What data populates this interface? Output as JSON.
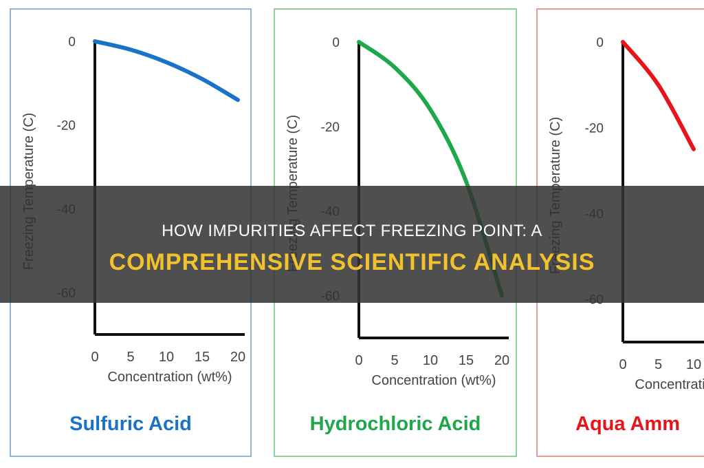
{
  "banner": {
    "line1": "How Impurities Affect Freezing Point: A",
    "line2": "Comprehensive Scientific Analysis"
  },
  "chart_data": [
    {
      "type": "line",
      "title": "Sulfuric Acid",
      "color": "#1a73c7",
      "border_color": "#8fb3d9",
      "xlabel": "Concentration (wt%)",
      "ylabel": "Freezing Temperature (C)",
      "xticks": [
        "0",
        "5",
        "10",
        "15",
        "20"
      ],
      "yticks": [
        "0",
        "-20",
        "-40",
        "-60"
      ],
      "xlim": [
        0,
        20
      ],
      "ylim": [
        -70,
        0
      ],
      "x": [
        0,
        5,
        10,
        15,
        20
      ],
      "y": [
        0,
        -2,
        -5,
        -9,
        -14
      ]
    },
    {
      "type": "line",
      "title": "Hydrochloric Acid",
      "color": "#1fa84a",
      "border_color": "#8fcf9c",
      "xlabel": "Concentration (wt%)",
      "ylabel": "Freezing Temperature (C)",
      "xticks": [
        "0",
        "5",
        "10",
        "15",
        "20"
      ],
      "yticks": [
        "0",
        "-20",
        "-40",
        "-60"
      ],
      "xlim": [
        0,
        20
      ],
      "ylim": [
        -70,
        0
      ],
      "x": [
        0,
        5,
        10,
        15,
        20
      ],
      "y": [
        0,
        -6,
        -16,
        -33,
        -60
      ]
    },
    {
      "type": "line",
      "title": "Aqua Amm",
      "color": "#e8141c",
      "border_color": "#e69a9a",
      "xlabel": "Concentration (wt%)",
      "ylabel": "Freezing Temperature (C)",
      "xticks": [
        "0",
        "5",
        "10"
      ],
      "yticks": [
        "0",
        "-20",
        "-40",
        "-60"
      ],
      "xlim": [
        0,
        20
      ],
      "ylim": [
        -70,
        0
      ],
      "x": [
        0,
        5,
        10
      ],
      "y": [
        0,
        -10,
        -25
      ]
    }
  ]
}
